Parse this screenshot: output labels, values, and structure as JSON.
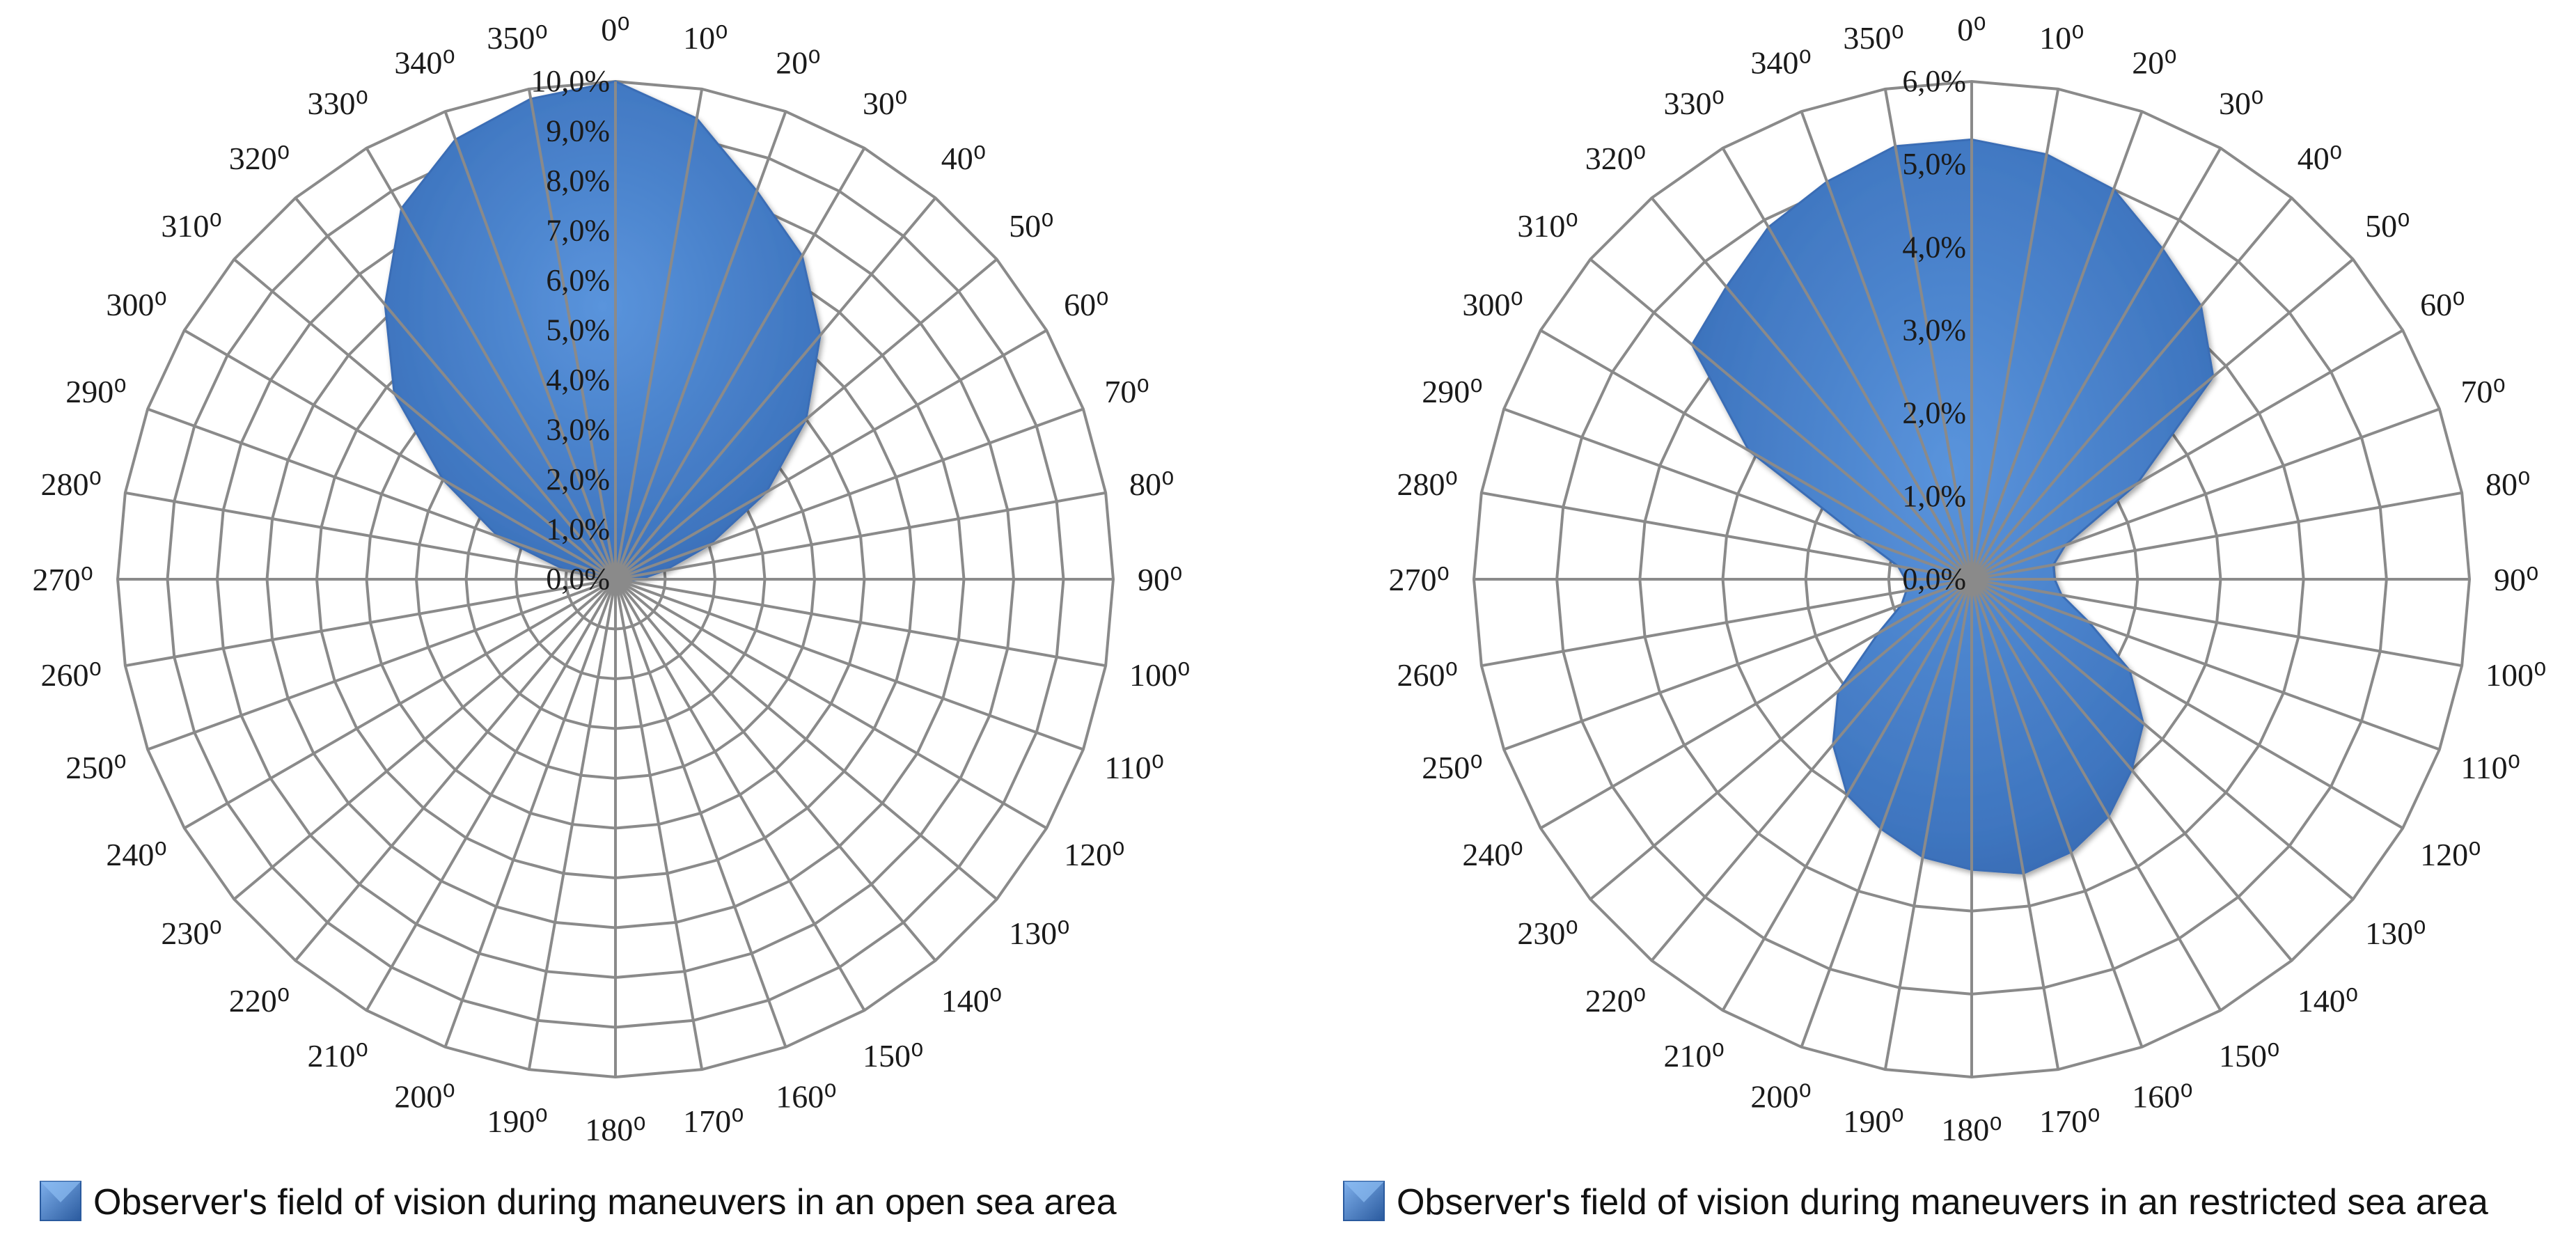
{
  "chart_data": [
    {
      "type": "radar",
      "legend": "Observer's field of vision during maneuvers in an open sea area",
      "legend_position": "bottom",
      "angle_unit_symbol": "⁰",
      "angles": [
        0,
        10,
        20,
        30,
        40,
        50,
        60,
        70,
        80,
        90,
        100,
        110,
        120,
        130,
        140,
        150,
        160,
        170,
        180,
        190,
        200,
        210,
        220,
        230,
        240,
        250,
        260,
        270,
        280,
        290,
        300,
        310,
        320,
        330,
        340,
        350
      ],
      "angle_labels": [
        "0",
        "10",
        "20",
        "30",
        "40",
        "50",
        "60",
        "70",
        "80",
        "90",
        "100",
        "110",
        "120",
        "130",
        "140",
        "150",
        "160",
        "170",
        "180",
        "190",
        "200",
        "210",
        "220",
        "230",
        "240",
        "250",
        "260",
        "270",
        "280",
        "290",
        "300",
        "310",
        "320",
        "330",
        "340",
        "350"
      ],
      "values": [
        10.0,
        9.4,
        8.3,
        7.5,
        6.4,
        5.0,
        3.5,
        2.0,
        1.0,
        0.5,
        0.2,
        0.1,
        0,
        0,
        0,
        0,
        0,
        0,
        0,
        0,
        0,
        0,
        0,
        0,
        0,
        0,
        0,
        0.2,
        1.0,
        2.5,
        4.0,
        5.8,
        7.2,
        8.6,
        9.4,
        9.8
      ],
      "r_ticks": [
        "0,0%",
        "1,0%",
        "2,0%",
        "3,0%",
        "4,0%",
        "5,0%",
        "6,0%",
        "7,0%",
        "8,0%",
        "9,0%",
        "10,0%"
      ],
      "rmax": 10,
      "color": "#4a7fc8"
    },
    {
      "type": "radar",
      "legend": "Observer's field of vision during maneuvers in an restricted sea area",
      "legend_position": "bottom",
      "angle_unit_symbol": "⁰",
      "angles": [
        0,
        10,
        20,
        30,
        40,
        50,
        60,
        70,
        80,
        90,
        100,
        110,
        120,
        130,
        140,
        150,
        160,
        170,
        180,
        190,
        200,
        210,
        220,
        230,
        240,
        250,
        260,
        270,
        280,
        290,
        300,
        310,
        320,
        330,
        340,
        350
      ],
      "angle_labels": [
        "0",
        "10",
        "20",
        "30",
        "40",
        "50",
        "60",
        "70",
        "80",
        "90",
        "100",
        "110",
        "120",
        "130",
        "140",
        "150",
        "160",
        "170",
        "180",
        "190",
        "200",
        "210",
        "220",
        "230",
        "240",
        "250",
        "260",
        "270",
        "280",
        "290",
        "300",
        "310",
        "320",
        "330",
        "340",
        "350"
      ],
      "values": [
        5.3,
        5.2,
        5.0,
        4.6,
        4.3,
        3.8,
        2.3,
        1.2,
        1.0,
        1.0,
        1.1,
        1.5,
        2.2,
        2.7,
        3.0,
        3.3,
        3.5,
        3.6,
        3.5,
        3.4,
        3.2,
        3.0,
        2.6,
        2.1,
        1.3,
        0.9,
        0.8,
        0.8,
        0.9,
        1.4,
        3.1,
        4.4,
        4.6,
        4.9,
        5.1,
        5.3
      ],
      "r_ticks": [
        "0,0%",
        "1,0%",
        "2,0%",
        "3,0%",
        "4,0%",
        "5,0%",
        "6,0%"
      ],
      "rmax": 6,
      "color": "#4a7fc8"
    }
  ]
}
